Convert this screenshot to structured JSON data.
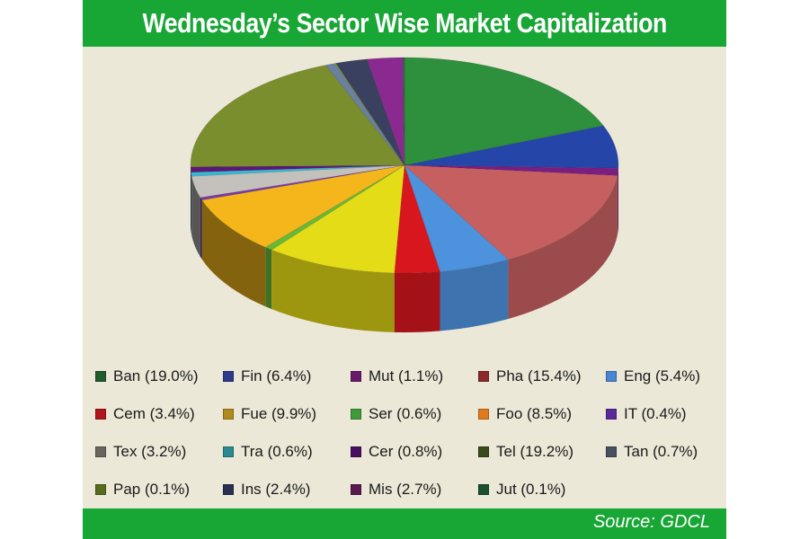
{
  "title": "Wednesday’s Sector Wise Market Capitalization",
  "source": "Source: GDCL",
  "chart_data": {
    "type": "pie",
    "title": "Wednesday’s Sector Wise Market Capitalization",
    "legend": "bottom",
    "categories": [
      "Ban",
      "Fin",
      "Mut",
      "Pha",
      "Eng",
      "Cem",
      "Fue",
      "Ser",
      "Foo",
      "IT",
      "Tex",
      "Tra",
      "Cer",
      "Tel",
      "Tan",
      "Pap",
      "Ins",
      "Mis",
      "Jut"
    ],
    "values": [
      19.0,
      6.4,
      1.1,
      15.4,
      5.4,
      3.4,
      9.9,
      0.6,
      8.5,
      0.4,
      3.2,
      0.6,
      0.8,
      19.2,
      0.7,
      0.1,
      2.4,
      2.7,
      0.1
    ],
    "legend_labels": [
      "Ban (19.0%)",
      "Fin (6.4%)",
      "Mut (1.1%)",
      "Pha (15.4%)",
      "Eng (5.4%)",
      "Cem (3.4%)",
      "Fue (9.9%)",
      "Ser (0.6%)",
      "Foo (8.5%)",
      "IT (0.4%)",
      "Tex (3.2%)",
      "Tra (0.6%)",
      "Cer (0.8%)",
      "Tel (19.2%)",
      "Tan (0.7%)",
      "Pap (0.1%)",
      "Ins (2.4%)",
      "Mis (2.7%)",
      "Jut (0.1%)"
    ],
    "legend_colors": [
      "#1f5c2e",
      "#2e3a8c",
      "#6a1a6a",
      "#8c2a2a",
      "#4a86d0",
      "#b0161b",
      "#b08a1c",
      "#3f9a3a",
      "#e07a1e",
      "#5a2a9a",
      "#6b6560",
      "#2a8a90",
      "#4a1060",
      "#3a4a1a",
      "#4a5060",
      "#5a6a1e",
      "#2a3050",
      "#5a1a50",
      "#1a5030"
    ],
    "slice_colors": [
      "#2e8f3c",
      "#2546a8",
      "#7a1e82",
      "#c66060",
      "#4d92dc",
      "#d8161e",
      "#e4dc16",
      "#68b838",
      "#f4b61a",
      "#7a3aa8",
      "#c4c0bc",
      "#38b8d0",
      "#5a1878",
      "#7a8e2e",
      "#6a80a0",
      "#8aa030",
      "#3a4060",
      "#8a2a90",
      "#2a7040"
    ]
  }
}
